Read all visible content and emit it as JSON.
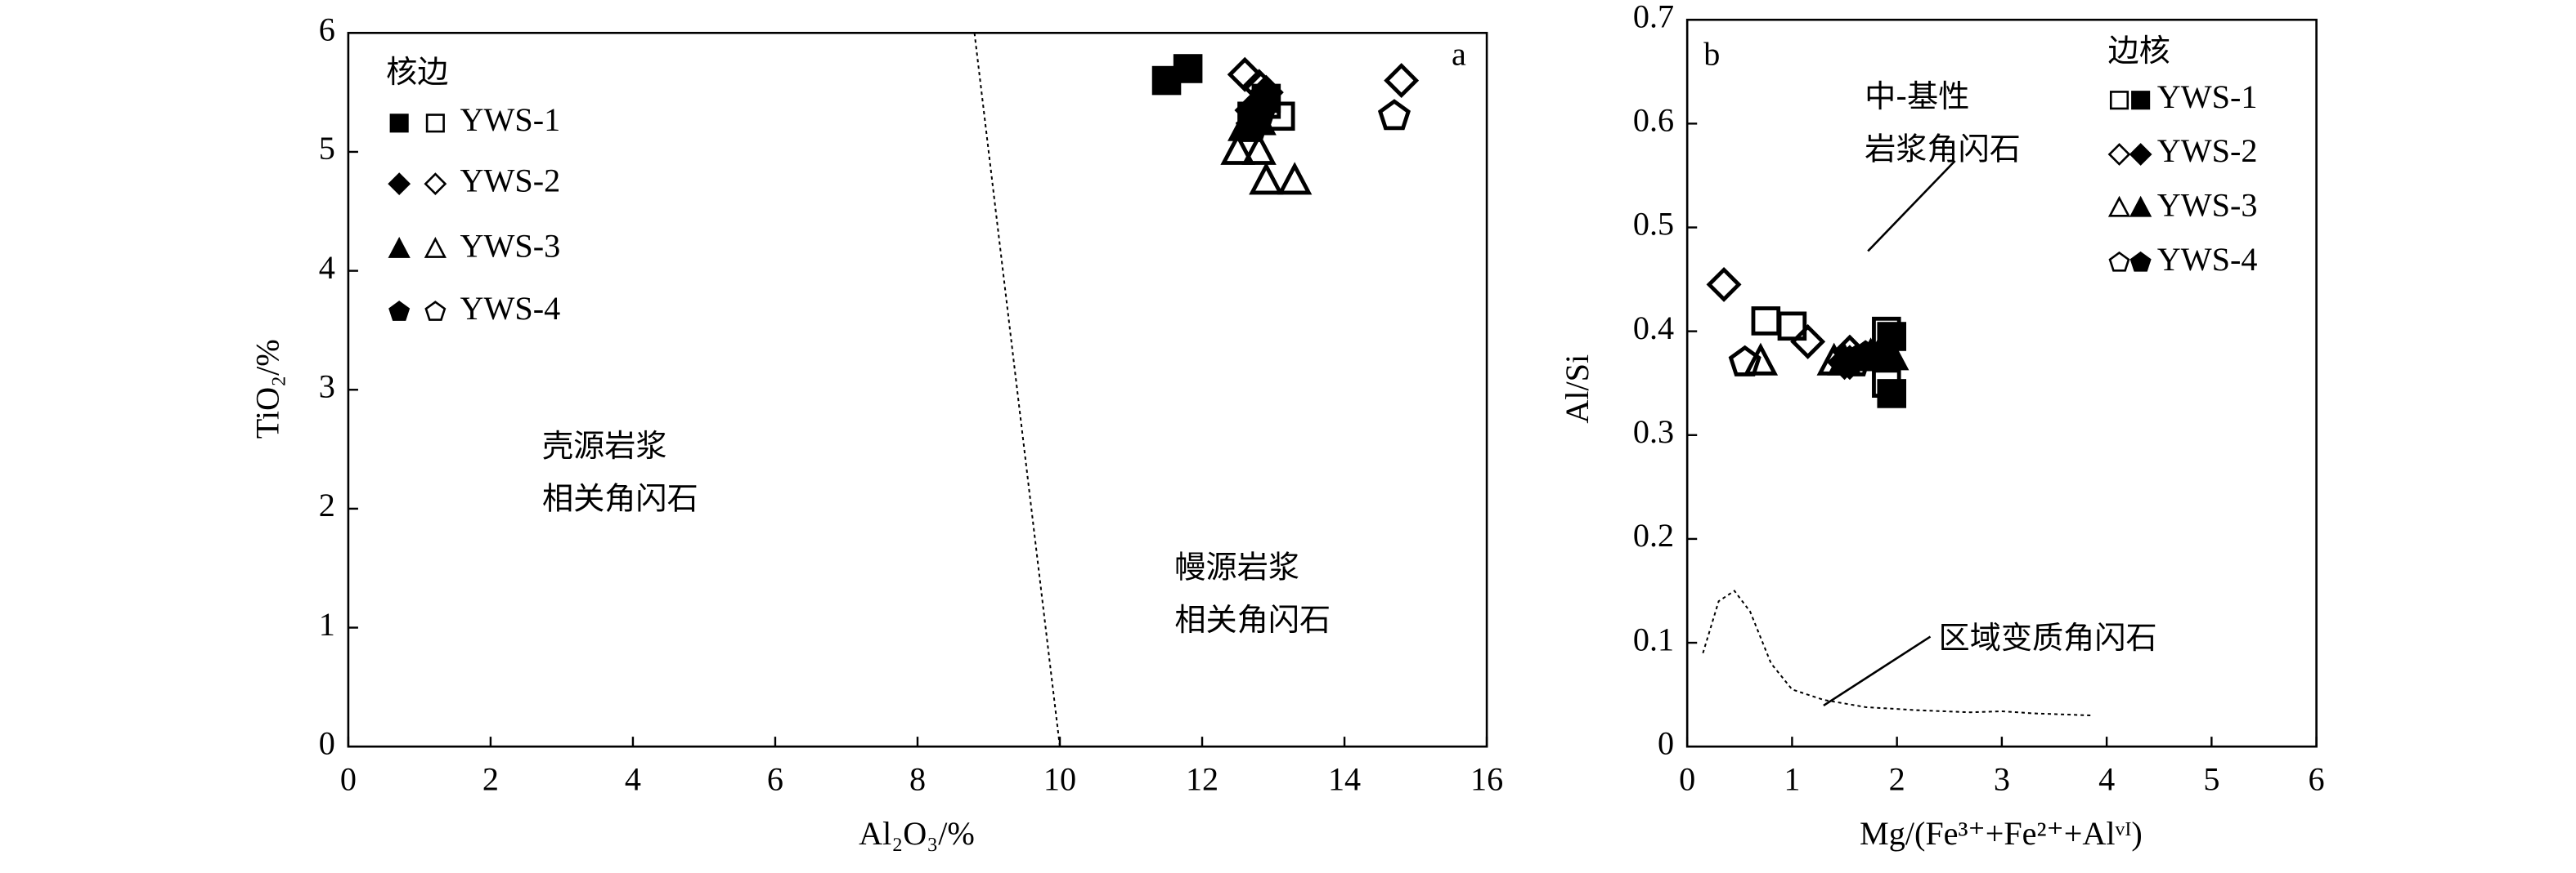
{
  "chart_data": [
    {
      "type": "scatter",
      "panel_label": "a",
      "xlabel": "Al₂O₃/%",
      "ylabel": "TiO₂/%",
      "xlim": [
        0,
        16
      ],
      "ylim": [
        0,
        6
      ],
      "xticks": [
        0,
        2,
        4,
        6,
        8,
        10,
        12,
        14,
        16
      ],
      "yticks": [
        0,
        1,
        2,
        3,
        4,
        5,
        6
      ],
      "legend_title": "核边",
      "legend_order": [
        "core",
        "rim"
      ],
      "color": "#000000",
      "annotations": [
        [
          "壳源岩浆",
          "相关角闪石"
        ],
        [
          "幔源岩浆",
          "相关角闪石"
        ]
      ],
      "boundary": {
        "x": [
          8.8,
          10
        ],
        "y": [
          6,
          0
        ]
      },
      "series": [
        {
          "name": "YWS-1",
          "marker": "square",
          "core_x": [
            11.5,
            11.8,
            12.9,
            12.7
          ],
          "core_y": [
            5.6,
            5.7,
            5.45,
            5.3
          ],
          "rim_x": [
            13.1,
            12.9
          ],
          "rim_y": [
            5.3,
            5.4
          ]
        },
        {
          "name": "YWS-2",
          "marker": "diamond",
          "core_x": [
            12.9,
            12.7
          ],
          "core_y": [
            5.5,
            5.35
          ],
          "rim_x": [
            12.6,
            12.8,
            14.8
          ],
          "rim_y": [
            5.65,
            5.55,
            5.6
          ]
        },
        {
          "name": "YWS-3",
          "marker": "triangle",
          "core_x": [
            12.6,
            12.8
          ],
          "core_y": [
            5.2,
            5.25
          ],
          "rim_x": [
            12.5,
            12.9,
            13.3,
            12.8
          ],
          "rim_y": [
            5.0,
            4.75,
            4.75,
            5.0
          ]
        },
        {
          "name": "YWS-4",
          "marker": "pentagon",
          "core_x": [
            12.7,
            12.8
          ],
          "core_y": [
            5.2,
            5.3
          ],
          "rim_x": [
            14.7
          ],
          "rim_y": [
            5.3
          ]
        }
      ]
    },
    {
      "type": "scatter",
      "panel_label": "b",
      "xlabel": "Mg/(Fe³⁺+Fe²⁺+Alᵛᴵ)",
      "ylabel": "Al/Si",
      "xlim": [
        0,
        6
      ],
      "ylim": [
        0,
        0.7
      ],
      "xticks": [
        0,
        1,
        2,
        3,
        4,
        5,
        6
      ],
      "yticks": [
        0,
        0.1,
        0.2,
        0.3,
        0.4,
        0.5,
        0.6,
        0.7
      ],
      "legend_title": "边核",
      "legend_order": [
        "rim",
        "core"
      ],
      "color": "#000000",
      "annotations": [
        [
          "中-基性",
          "岩浆角闪石"
        ],
        [
          "区域变质角闪石"
        ]
      ],
      "boundary": {
        "x": [
          0.15,
          0.3,
          0.45,
          0.6,
          0.8,
          1.0,
          1.3,
          1.7,
          2.2,
          2.7,
          3.0,
          3.3,
          3.85
        ],
        "y": [
          0.09,
          0.14,
          0.15,
          0.13,
          0.08,
          0.055,
          0.045,
          0.038,
          0.035,
          0.033,
          0.034,
          0.032,
          0.03
        ]
      },
      "series": [
        {
          "name": "YWS-1",
          "marker": "square",
          "core_x": [
            1.95,
            1.95
          ],
          "core_y": [
            0.395,
            0.34
          ],
          "rim_x": [
            0.75,
            1.0,
            1.9,
            1.9
          ],
          "rim_y": [
            0.41,
            0.405,
            0.4,
            0.35
          ]
        },
        {
          "name": "YWS-2",
          "marker": "diamond",
          "core_x": [
            1.5
          ],
          "core_y": [
            0.37
          ],
          "rim_x": [
            0.35,
            1.15,
            1.55,
            1.55
          ],
          "rim_y": [
            0.445,
            0.39,
            0.38,
            0.37
          ]
        },
        {
          "name": "YWS-3",
          "marker": "triangle",
          "core_x": [
            1.85,
            1.95,
            1.5
          ],
          "core_y": [
            0.38,
            0.375,
            0.37
          ],
          "rim_x": [
            0.7,
            1.4,
            1.75
          ],
          "rim_y": [
            0.37,
            0.37,
            0.375
          ]
        },
        {
          "name": "YWS-4",
          "marker": "pentagon",
          "core_x": [
            1.7
          ],
          "core_y": [
            0.375
          ],
          "rim_x": [
            0.55,
            1.6
          ],
          "rim_y": [
            0.37,
            0.37
          ]
        }
      ]
    }
  ]
}
